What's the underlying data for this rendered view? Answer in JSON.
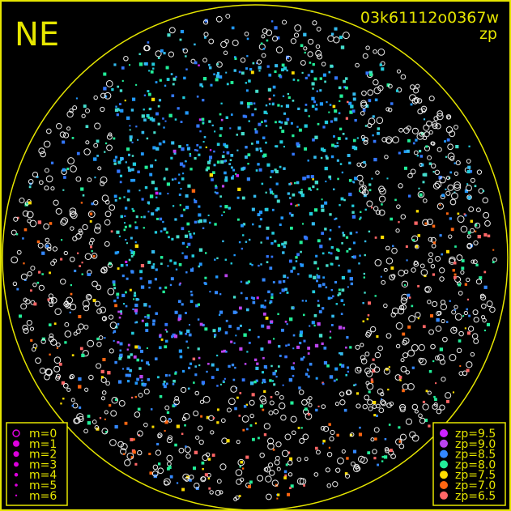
{
  "corner_label": "NE",
  "frame_id": "03k61112o0367w",
  "mode_label": "zp",
  "colors": {
    "frame": "#e6e600",
    "background": "#000000",
    "uncalibrated": "#ffffff"
  },
  "chart_data": {
    "type": "scatter",
    "title": "03k61112o0367w",
    "subtitle": "zp",
    "magnitude_legend": [
      {
        "label": "m=0",
        "marker": "open-circle"
      },
      {
        "label": "m=1",
        "marker": "dot"
      },
      {
        "label": "m=2",
        "marker": "dot"
      },
      {
        "label": "m=3",
        "marker": "dot"
      },
      {
        "label": "m=4",
        "marker": "dot"
      },
      {
        "label": "m=5",
        "marker": "dot"
      },
      {
        "label": "m=6",
        "marker": "dot"
      }
    ],
    "zp_legend": [
      {
        "label": "zp=9.5",
        "color": "#cc22ff"
      },
      {
        "label": "zp=9.0",
        "color": "#bb44ee"
      },
      {
        "label": "zp=8.5",
        "color": "#3388ff"
      },
      {
        "label": "zp=8.0",
        "color": "#22ee99"
      },
      {
        "label": "zp=7.5",
        "color": "#ffdd00"
      },
      {
        "label": "zp=7.0",
        "color": "#ff6611"
      },
      {
        "label": "zp=6.5",
        "color": "#ff6666"
      }
    ],
    "legend_placement": [
      "bottom-left",
      "bottom-right"
    ]
  }
}
